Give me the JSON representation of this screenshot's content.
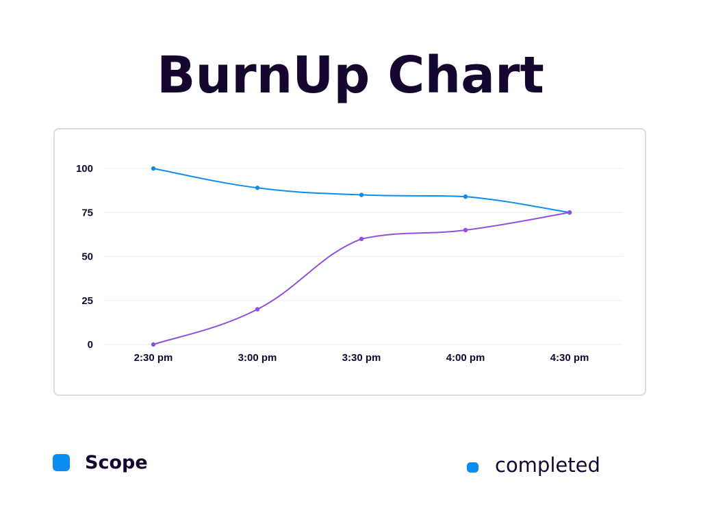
{
  "title": "BurnUp Chart",
  "legend": {
    "scope_label": "Scope",
    "completed_label": "completed"
  },
  "colors": {
    "scope_line": "#0a8cf0",
    "completed_line": "#8f4fe0",
    "legend_swatch": "#0a8cf0",
    "grid": "#eeeeee",
    "text": "#14062f"
  },
  "chart_data": {
    "type": "line",
    "title": "BurnUp Chart",
    "xlabel": "",
    "ylabel": "",
    "categories": [
      "2:30 pm",
      "3:00 pm",
      "3:30 pm",
      "4:00 pm",
      "4:30 pm"
    ],
    "y_ticks": [
      0,
      25,
      50,
      75,
      100
    ],
    "ylim": [
      0,
      100
    ],
    "grid": true,
    "smooth": true,
    "legend_position": "bottom",
    "series": [
      {
        "name": "Scope",
        "values": [
          100,
          89,
          85,
          84,
          75
        ]
      },
      {
        "name": "completed",
        "values": [
          0,
          20,
          60,
          65,
          75
        ]
      }
    ]
  }
}
